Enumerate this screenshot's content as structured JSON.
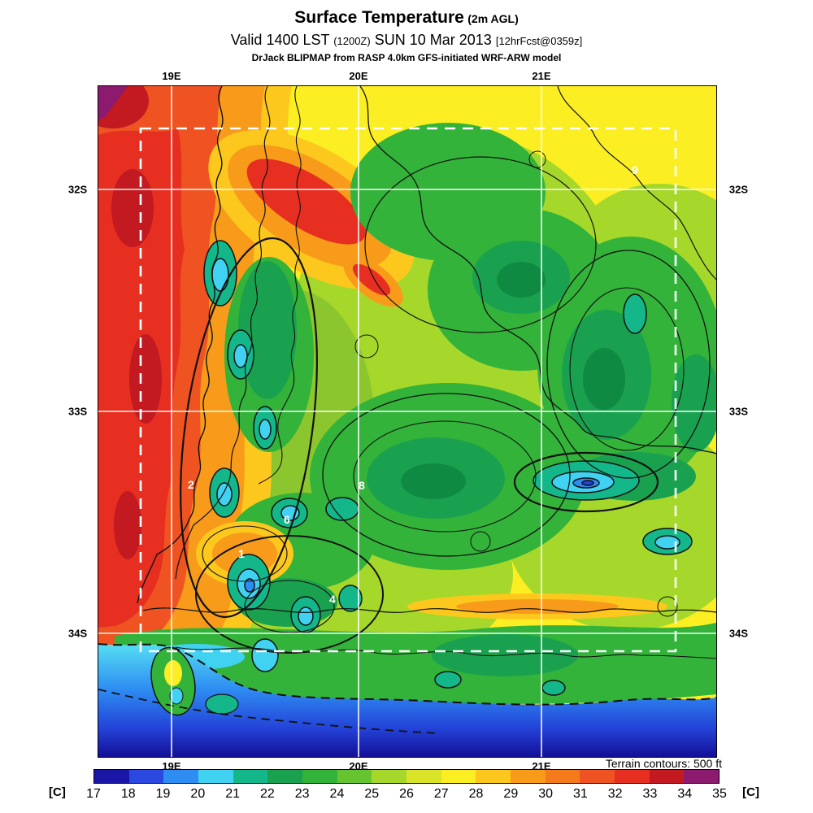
{
  "header": {
    "title_main": "Surface Temperature",
    "title_sub": "(2m AGL)",
    "valid_line": {
      "prefix": "Valid 1400 LST",
      "zulu": "(1200Z)",
      "date": "SUN 10 Mar 2013",
      "fcst": "[12hrFcst@0359z]"
    },
    "model_line": "DrJack BLIPMAP from RASP 4.0km GFS-initiated WRF-ARW model"
  },
  "map": {
    "lon_labels": [
      "19E",
      "20E",
      "21E"
    ],
    "lat_labels": [
      "32S",
      "33S",
      "34S"
    ],
    "annotations": [
      "9",
      "8",
      "6",
      "2",
      "1",
      "4"
    ],
    "terrain_note": "Terrain contours: 500 ft"
  },
  "colorbar": {
    "unit": "[C]",
    "ticks": [
      "17",
      "18",
      "19",
      "20",
      "21",
      "22",
      "23",
      "24",
      "25",
      "26",
      "27",
      "28",
      "29",
      "30",
      "31",
      "32",
      "33",
      "34",
      "35"
    ],
    "colors": [
      "#1c16a7",
      "#2b48e0",
      "#2e8df2",
      "#41d2f2",
      "#14b789",
      "#1aa14f",
      "#33b33a",
      "#66c430",
      "#a6d82b",
      "#d9e428",
      "#fbee22",
      "#fdc81d",
      "#f89b1b",
      "#f47a1b",
      "#ef5322",
      "#e62f21",
      "#c21a20",
      "#8c1a6e"
    ]
  },
  "chart_data": {
    "type": "heatmap",
    "title": "Surface Temperature (2m AGL)",
    "valid": "1400 LST (1200Z) SUN 10 Mar 2013",
    "forecast_cycle": "12hrFcst@0359z",
    "model": "DrJack BLIPMAP from RASP 4.0km GFS-initiated WRF-ARW model",
    "units": "C",
    "scale_min": 17,
    "scale_max": 35,
    "scale_step": 1,
    "x_ticks": [
      "19E",
      "20E",
      "21E"
    ],
    "y_ticks": [
      "32S",
      "33S",
      "34S"
    ],
    "legend_position": "bottom",
    "visible_contour_labels": [
      "9",
      "8",
      "6",
      "2",
      "1",
      "4"
    ],
    "note": "Terrain contours: 500 ft"
  }
}
